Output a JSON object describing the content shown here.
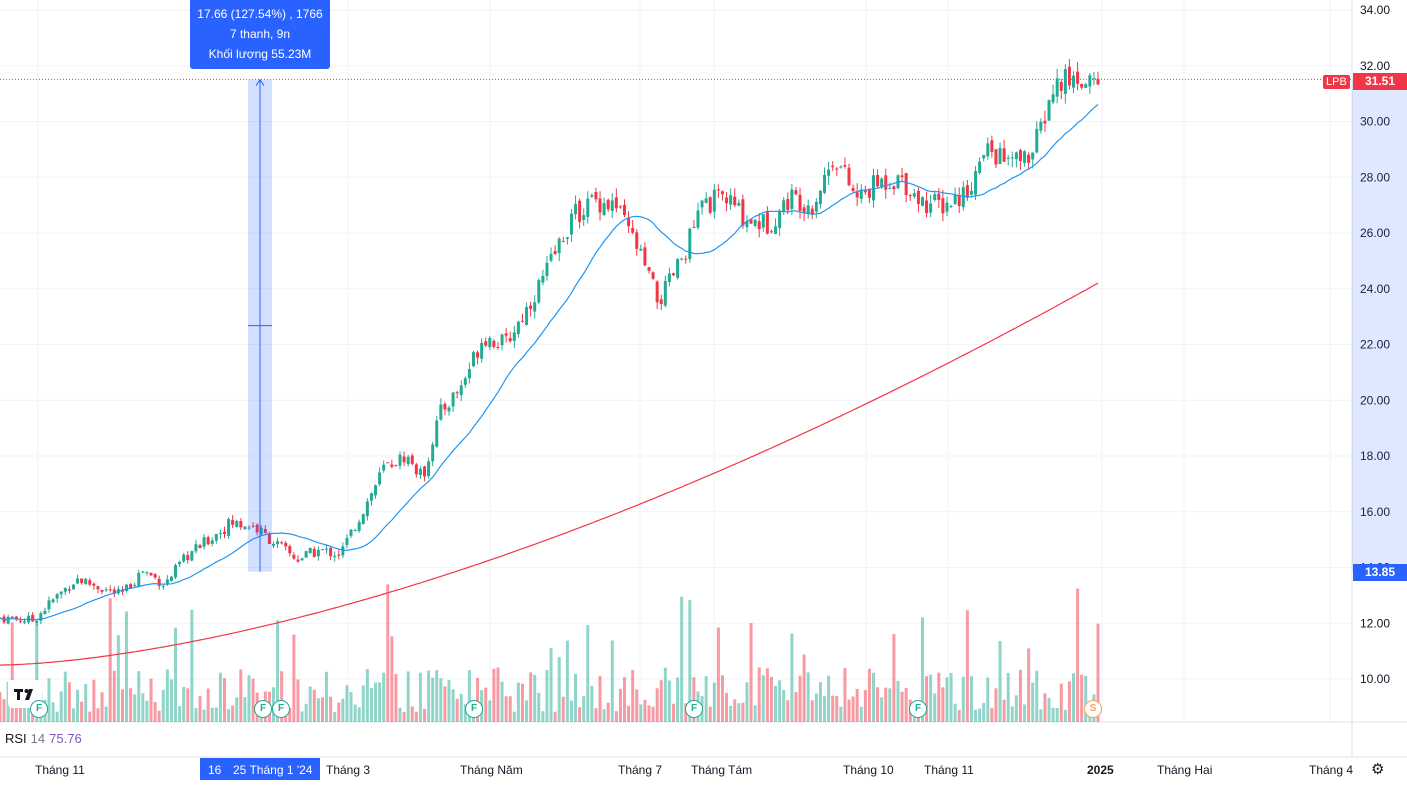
{
  "chart_data": {
    "type": "candlestick",
    "symbol": "LPB",
    "price_axis": {
      "ticks": [
        "34.00",
        "32.00",
        "30.00",
        "28.00",
        "26.00",
        "24.00",
        "22.00",
        "20.00",
        "18.00",
        "16.00",
        "14.00",
        "12.00",
        "10.00"
      ],
      "ylim": [
        9.0,
        34.5
      ]
    },
    "last_price": "31.51",
    "marked_price": "13.85",
    "time_axis": [
      "Tháng 11",
      "Tháng 3",
      "Tháng Năm",
      "Tháng 7",
      "Tháng Tám",
      "Tháng 10",
      "Tháng 11",
      "2025",
      "Tháng Hai",
      "Tháng 4"
    ],
    "time_axis_highlight": {
      "day": "16",
      "date": "25 Tháng 1 '24"
    },
    "close_series": [
      {
        "t": 0,
        "v": 12.2
      },
      {
        "t": 0.03,
        "v": 12.1
      },
      {
        "t": 0.05,
        "v": 12.9
      },
      {
        "t": 0.07,
        "v": 13.6
      },
      {
        "t": 0.09,
        "v": 13.3
      },
      {
        "t": 0.11,
        "v": 13.0
      },
      {
        "t": 0.13,
        "v": 13.9
      },
      {
        "t": 0.15,
        "v": 13.4
      },
      {
        "t": 0.17,
        "v": 14.4
      },
      {
        "t": 0.19,
        "v": 15.0
      },
      {
        "t": 0.21,
        "v": 15.6
      },
      {
        "t": 0.23,
        "v": 15.5
      },
      {
        "t": 0.25,
        "v": 14.9
      },
      {
        "t": 0.27,
        "v": 14.3
      },
      {
        "t": 0.29,
        "v": 14.6
      },
      {
        "t": 0.31,
        "v": 14.5
      },
      {
        "t": 0.33,
        "v": 16.0
      },
      {
        "t": 0.35,
        "v": 17.6
      },
      {
        "t": 0.37,
        "v": 18.0
      },
      {
        "t": 0.385,
        "v": 17.2
      },
      {
        "t": 0.4,
        "v": 19.5
      },
      {
        "t": 0.42,
        "v": 20.5
      },
      {
        "t": 0.44,
        "v": 22.3
      },
      {
        "t": 0.46,
        "v": 22.0
      },
      {
        "t": 0.48,
        "v": 23.3
      },
      {
        "t": 0.5,
        "v": 24.8
      },
      {
        "t": 0.52,
        "v": 26.5
      },
      {
        "t": 0.54,
        "v": 27.2
      },
      {
        "t": 0.56,
        "v": 27.0
      },
      {
        "t": 0.58,
        "v": 25.5
      },
      {
        "t": 0.6,
        "v": 23.5
      },
      {
        "t": 0.62,
        "v": 25.0
      },
      {
        "t": 0.64,
        "v": 27.0
      },
      {
        "t": 0.66,
        "v": 27.3
      },
      {
        "t": 0.68,
        "v": 26.5
      },
      {
        "t": 0.7,
        "v": 26.3
      },
      {
        "t": 0.72,
        "v": 27.3
      },
      {
        "t": 0.74,
        "v": 27.0
      },
      {
        "t": 0.76,
        "v": 28.8
      },
      {
        "t": 0.78,
        "v": 27.2
      },
      {
        "t": 0.8,
        "v": 27.8
      },
      {
        "t": 0.82,
        "v": 28.0
      },
      {
        "t": 0.84,
        "v": 27.1
      },
      {
        "t": 0.86,
        "v": 27.0
      },
      {
        "t": 0.88,
        "v": 27.5
      },
      {
        "t": 0.9,
        "v": 29.0
      },
      {
        "t": 0.92,
        "v": 28.5
      },
      {
        "t": 0.94,
        "v": 28.8
      },
      {
        "t": 0.96,
        "v": 31.2
      },
      {
        "t": 0.97,
        "v": 31.5
      }
    ],
    "series": [
      {
        "name": "",
        "role": "short moving average",
        "color": "#2196f3"
      },
      {
        "name": "",
        "role": "long moving average",
        "color": "#f23645"
      }
    ],
    "measure_tooltip": {
      "line1": "17.66 (127.54%) , 1766",
      "line2": "7 thanh, 9n",
      "line3": "Khối lượng 55.23M"
    },
    "indicator": {
      "name": "RSI",
      "period": "14",
      "value": "75.76"
    },
    "event_badges": [
      "F",
      "F",
      "F",
      "F",
      "F",
      "F",
      "S"
    ],
    "colors": {
      "up": "#22ab94",
      "down": "#f23645",
      "accent": "#2962ff"
    }
  }
}
